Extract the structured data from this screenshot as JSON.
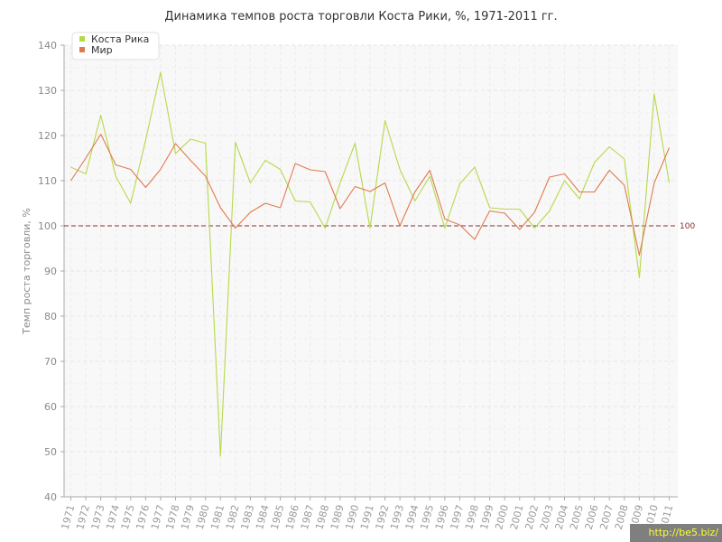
{
  "chart_data": {
    "type": "line",
    "title": "Динамика темпов роста торговли Коста Рики, %, 1971-2011 гг.",
    "xlabel": "",
    "ylabel": "Темп роста торговли, %",
    "ylim": [
      40,
      140
    ],
    "yticks": [
      40,
      50,
      60,
      70,
      80,
      90,
      100,
      110,
      120,
      130,
      140
    ],
    "categories": [
      "1971",
      "1972",
      "1973",
      "1974",
      "1975",
      "1976",
      "1977",
      "1978",
      "1979",
      "1980",
      "1981",
      "1982",
      "1983",
      "1984",
      "1985",
      "1986",
      "1987",
      "1988",
      "1989",
      "1990",
      "1991",
      "1992",
      "1993",
      "1994",
      "1995",
      "1996",
      "1997",
      "1998",
      "1999",
      "2000",
      "2001",
      "2002",
      "2003",
      "2004",
      "2005",
      "2006",
      "2007",
      "2008",
      "2009",
      "2010",
      "2011"
    ],
    "series": [
      {
        "name": "Коста Рика",
        "color": "#b5d94a",
        "values": [
          113,
          111.5,
          124.5,
          111,
          105,
          119,
          134,
          116,
          119.2,
          118.3,
          49,
          118.5,
          109.5,
          114.5,
          112.5,
          105.5,
          105.3,
          99.5,
          109.5,
          118.3,
          99.5,
          123.3,
          112.5,
          105.5,
          111,
          99.5,
          109.3,
          113,
          104,
          103.7,
          103.7,
          99.5,
          103.3,
          110,
          106,
          114,
          117.5,
          114.8,
          88.5,
          129.2,
          109.5
        ]
      },
      {
        "name": "Мир",
        "color": "#e07a4e",
        "values": [
          110,
          115,
          120.3,
          113.5,
          112.5,
          108.5,
          112.5,
          118.2,
          114.5,
          111,
          104,
          99.5,
          103,
          105,
          104,
          113.8,
          112.4,
          112,
          103.8,
          108.7,
          107.6,
          109.5,
          100,
          107.5,
          112.3,
          101.5,
          100.2,
          97,
          103.3,
          102.8,
          99.2,
          103,
          110.8,
          111.5,
          107.5,
          107.5,
          112.3,
          109,
          93.5,
          109.5,
          117.3
        ]
      }
    ],
    "reference_line": {
      "value": 100,
      "label": "100",
      "color": "#8b2a2a"
    },
    "grid": true,
    "legend": "top-left"
  },
  "watermark": "http://be5.biz/"
}
